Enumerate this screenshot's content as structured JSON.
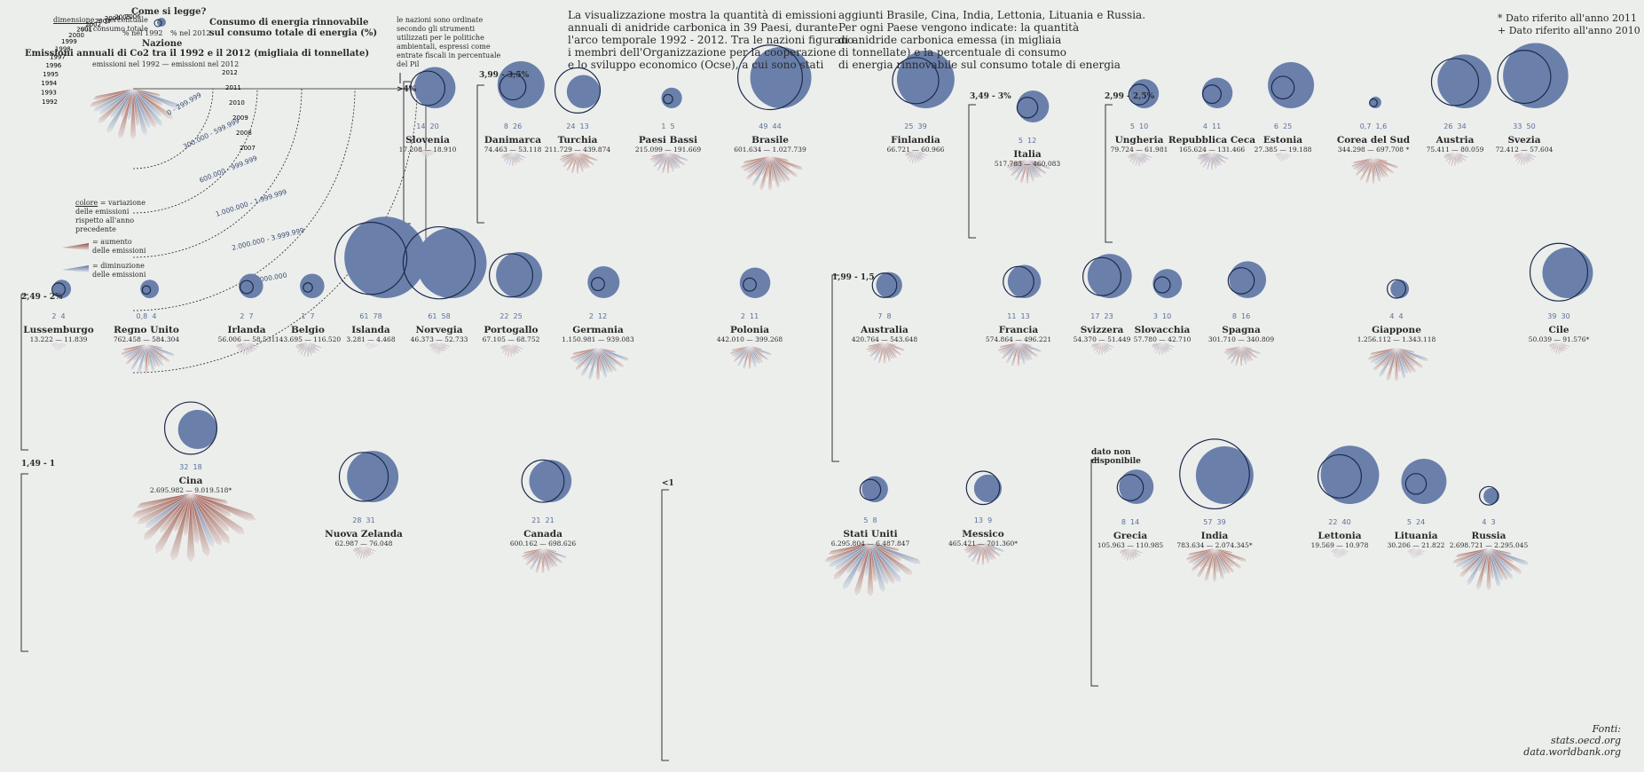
{
  "colors": {
    "bg": "#eceeec",
    "increase": "#8b3a2e",
    "decrease": "#5a6f99",
    "circle_fill": "#6a80ab",
    "line": "#333333"
  },
  "legend": {
    "how_to_read": "Come si legge?",
    "dimension_label": "dimensione",
    "dimension_desc": "= percentuale\nsul consumo totale",
    "year_1992": "% nel 1992",
    "year_2012": "% nel 2012",
    "renewable_title": "Consumo di energia rinnovabile\nsul consumo totale di energia (%)",
    "nation": "Nazione",
    "emissions_title": "Emissioni annuali di Co2 tra il 1992 e il 2012 (migliaia di tonnellate)",
    "emissions_years": "emissioni nel 1992 — emissioni nel 2012",
    "years_left": [
      "1992",
      "1993",
      "1994",
      "1995",
      "1996",
      "1997",
      "1998",
      "1999",
      "2000",
      "2001",
      "2002",
      "2003",
      "2004",
      "2005",
      "2006"
    ],
    "years_right": [
      "2012",
      "2011",
      "2010",
      "2009",
      "2008",
      "2007"
    ],
    "bands": [
      "0 - 299.999",
      "300.000 - 599.999",
      "600.000 - 999.999",
      "1.000.000 - 1.999.999",
      "2.000.000 - 3.999.999",
      ">4.000.000"
    ],
    "color_label": "colore",
    "color_desc": "= variazione\ndelle emissioni\nrispetto all'anno\nprecedente",
    "increase": "= aumento\ndelle emissioni",
    "decrease": "= diminuzione\ndelle emissioni",
    "sort_note": "le nazioni sono ordinate\nsecondo gli strumenti\nutilizzati per le politiche\nambientali, espressi come\nentrate fiscali in percentuale\ndel Pil"
  },
  "intro": {
    "col1": "La visualizzazione mostra la quantità di emissioni\nannuali di anidride carbonica in 39 Paesi, durante\nl'arco temporale 1992 - 2012. Tra le nazioni figurano\ni membri dell'Organizzazione per la cooperazione\ne lo sviluppo economico (Ocse), a cui sono stati",
    "col2": "aggiunti Brasile, Cina, India, Lettonia, Lituania e Russia.\nPer ogni Paese vengono indicate: la quantità\ndi anidride carbonica emessa (in migliaia\ndi tonnellate) e la percentuale di consumo\ndi energia rinnovabile sul consumo totale di energia"
  },
  "notes": [
    "* Dato riferito all'anno 2011",
    "+ Dato riferito all'anno 2010"
  ],
  "sources": {
    "label": "Fonti:",
    "items": [
      "stats.oecd.org",
      "data.worldbank.org"
    ]
  },
  "groups": [
    ">4%",
    "3,99 - 3,5%",
    "3,49 - 3%",
    "2,99 - 2,5%",
    "2,49 - 2%",
    "1,99 - 1,5",
    "1,49 - 1",
    "<1",
    "dato non\ndisponibile"
  ],
  "countries": [
    {
      "name": "Slovenia",
      "range": "17.208 — 18.910",
      "p1992": "14",
      "p2012": "20",
      "r1": 14,
      "r2": 20,
      "size": 0.25,
      "red": 0.5
    },
    {
      "name": "Danimarca",
      "range": "74.463 — 53.118",
      "p1992": "8",
      "p2012": "26",
      "r1": 8,
      "r2": 26,
      "size": 0.5,
      "red": 0.4
    },
    {
      "name": "Turchia",
      "range": "211.729 — 439.874",
      "p1992": "24",
      "p2012": "13",
      "r1": 24,
      "r2": 13,
      "size": 0.9,
      "red": 0.85
    },
    {
      "name": "Paesi Bassi",
      "range": "215.099 — 191.669",
      "p1992": "1",
      "p2012": "5",
      "r1": 1,
      "r2": 5,
      "size": 0.9,
      "red": 0.45
    },
    {
      "name": "Brasile",
      "range": "601.634 — 1.027.739",
      "p1992": "49",
      "p2012": "44",
      "r1": 49,
      "r2": 44,
      "size": 1.6,
      "red": 0.8
    },
    {
      "name": "Finlandia",
      "range": "66.721 — 60.966",
      "p1992": "25",
      "p2012": "39",
      "r1": 25,
      "r2": 39,
      "size": 0.45,
      "red": 0.5
    },
    {
      "name": "Italia",
      "range": "517.783 — 460.083",
      "p1992": "5",
      "p2012": "12",
      "r1": 5,
      "r2": 12,
      "size": 1.05,
      "red": 0.5
    },
    {
      "name": "Ungheria",
      "range": "79.724 — 61.981",
      "p1992": "5",
      "p2012": "10",
      "r1": 5,
      "r2": 10,
      "size": 0.5,
      "red": 0.4
    },
    {
      "name": "Repubblica Ceca",
      "range": "165.624 — 131.466",
      "p1992": "4",
      "p2012": "11",
      "r1": 4,
      "r2": 11,
      "size": 0.7,
      "red": 0.4
    },
    {
      "name": "Estonia",
      "range": "27.385 — 19.188",
      "p1992": "6",
      "p2012": "25",
      "r1": 6,
      "r2": 25,
      "size": 0.25,
      "red": 0.5
    },
    {
      "name": "Corea del Sud",
      "range": "344.298 — 697.708 *",
      "p1992": "0,7",
      "p2012": "1,6",
      "r1": 0.7,
      "r2": 1.6,
      "size": 1.15,
      "red": 0.85
    },
    {
      "name": "Austria",
      "range": "75.411 — 80.059",
      "p1992": "26",
      "p2012": "34",
      "r1": 26,
      "r2": 34,
      "size": 0.5,
      "red": 0.55
    },
    {
      "name": "Svezia",
      "range": "72.412 — 57.604",
      "p1992": "33",
      "p2012": "50",
      "r1": 33,
      "r2": 50,
      "size": 0.45,
      "red": 0.45
    },
    {
      "name": "Lussemburgo",
      "range": "13.222 — 11.839",
      "p1992": "2",
      "p2012": "4",
      "r1": 2,
      "r2": 4,
      "size": 0.2,
      "red": 0.5
    },
    {
      "name": "Regno Unito",
      "range": "762.458 — 584.304",
      "p1992": "0,8",
      "p2012": "4",
      "r1": 0.8,
      "r2": 4,
      "size": 1.35,
      "red": 0.35
    },
    {
      "name": "Irlanda",
      "range": "56.006 — 58.531",
      "p1992": "2",
      "p2012": "7",
      "r1": 2,
      "r2": 7,
      "size": 0.45,
      "red": 0.5
    },
    {
      "name": "Belgio",
      "range": "143.695 — 116.520",
      "p1992": "1",
      "p2012": "7",
      "r1": 1,
      "r2": 7,
      "size": 0.55,
      "red": 0.4
    },
    {
      "name": "Islanda",
      "range": "3.281 — 4.468",
      "p1992": "61",
      "p2012": "78",
      "r1": 61,
      "r2": 78,
      "size": 0.15,
      "red": 0.5
    },
    {
      "name": "Norvegia",
      "range": "46.373 — 52.733",
      "p1992": "61",
      "p2012": "58",
      "r1": 61,
      "r2": 58,
      "size": 0.4,
      "red": 0.55
    },
    {
      "name": "Portogallo",
      "range": "67.105 — 68.752",
      "p1992": "22",
      "p2012": "25",
      "r1": 22,
      "r2": 25,
      "size": 0.45,
      "red": 0.55
    },
    {
      "name": "Germania",
      "range": "1.150.981 — 939.083",
      "p1992": "2",
      "p2012": "12",
      "r1": 2,
      "r2": 12,
      "size": 1.5,
      "red": 0.4
    },
    {
      "name": "Polonia",
      "range": "442.010 — 399.268",
      "p1992": "2",
      "p2012": "11",
      "r1": 2,
      "r2": 11,
      "size": 1.0,
      "red": 0.45
    },
    {
      "name": "Australia",
      "range": "420.764 — 543.648",
      "p1992": "7",
      "p2012": "8",
      "r1": 7,
      "r2": 8,
      "size": 0.9,
      "red": 0.75
    },
    {
      "name": "Francia",
      "range": "574.864 — 496.221",
      "p1992": "11",
      "p2012": "13",
      "r1": 11,
      "r2": 13,
      "size": 1.05,
      "red": 0.45
    },
    {
      "name": "Svizzera",
      "range": "54.370 — 51.449",
      "p1992": "17",
      "p2012": "23",
      "r1": 17,
      "r2": 23,
      "size": 0.45,
      "red": 0.5
    },
    {
      "name": "Slovacchia",
      "range": "57.780 — 42.710",
      "p1992": "3",
      "p2012": "10",
      "r1": 3,
      "r2": 10,
      "size": 0.45,
      "red": 0.4
    },
    {
      "name": "Spagna",
      "range": "301.710 — 340.809",
      "p1992": "8",
      "p2012": "16",
      "r1": 8,
      "r2": 16,
      "size": 0.85,
      "red": 0.6
    },
    {
      "name": "Giappone",
      "range": "1.256.112 — 1.343.118",
      "p1992": "4",
      "p2012": "4",
      "r1": 4,
      "r2": 4,
      "size": 1.55,
      "red": 0.55
    },
    {
      "name": "Cile",
      "range": "50.039 — 91.576*",
      "p1992": "39",
      "p2012": "30",
      "r1": 39,
      "r2": 30,
      "size": 0.4,
      "red": 0.7
    },
    {
      "name": "Cina",
      "range": "2.695.982 — 9.019.518*",
      "p1992": "32",
      "p2012": "18",
      "r1": 32,
      "r2": 18,
      "size": 3.4,
      "red": 0.85
    },
    {
      "name": "Nuova Zelanda",
      "range": "62.987 — 76.048",
      "p1992": "28",
      "p2012": "31",
      "r1": 28,
      "r2": 31,
      "size": 0.45,
      "red": 0.6
    },
    {
      "name": "Canada",
      "range": "600.162 — 698.626",
      "p1992": "21",
      "p2012": "21",
      "r1": 21,
      "r2": 21,
      "size": 1.1,
      "red": 0.65
    },
    {
      "name": "Stati Uniti",
      "range": "6.295.804 — 6.487.847",
      "p1992": "5",
      "p2012": "8",
      "r1": 5,
      "r2": 8,
      "size": 2.6,
      "red": 0.5
    },
    {
      "name": "Messico",
      "range": "465.421 — 701.360*",
      "p1992": "13",
      "p2012": "9",
      "r1": 13,
      "r2": 9,
      "size": 0.95,
      "red": 0.7
    },
    {
      "name": "Grecia",
      "range": "105.963 — 110.985",
      "p1992": "8",
      "p2012": "14",
      "r1": 8,
      "r2": 14,
      "size": 0.45,
      "red": 0.55
    },
    {
      "name": "India",
      "range": "783.634 — 2.074.345*",
      "p1992": "57",
      "p2012": "39",
      "r1": 57,
      "r2": 39,
      "size": 1.55,
      "red": 0.85
    },
    {
      "name": "Lettonia",
      "range": "19.569 — 10.978",
      "p1992": "22",
      "p2012": "40",
      "r1": 22,
      "r2": 40,
      "size": 0.3,
      "red": 0.4
    },
    {
      "name": "Lituania",
      "range": "30.206 — 21.822",
      "p1992": "5",
      "p2012": "24",
      "r1": 5,
      "r2": 24,
      "size": 0.3,
      "red": 0.4
    },
    {
      "name": "Russia",
      "range": "2.698.721 — 2.295.045",
      "p1992": "4",
      "p2012": "3",
      "r1": 4,
      "r2": 3,
      "size": 2.0,
      "red": 0.45
    }
  ]
}
